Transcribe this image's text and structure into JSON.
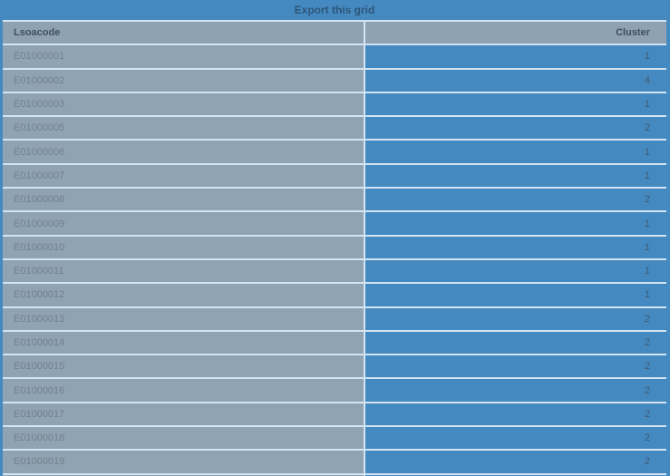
{
  "title_bar": {
    "label": "Export this grid"
  },
  "table": {
    "columns": {
      "lsoacode_label": "Lsoacode",
      "cluster_label": "Cluster"
    },
    "rows": [
      {
        "lsoacode": "E01000001",
        "cluster": "1"
      },
      {
        "lsoacode": "E01000002",
        "cluster": "4"
      },
      {
        "lsoacode": "E01000003",
        "cluster": "1"
      },
      {
        "lsoacode": "E01000005",
        "cluster": "2"
      },
      {
        "lsoacode": "E01000006",
        "cluster": "1"
      },
      {
        "lsoacode": "E01000007",
        "cluster": "1"
      },
      {
        "lsoacode": "E01000008",
        "cluster": "2"
      },
      {
        "lsoacode": "E01000009",
        "cluster": "1"
      },
      {
        "lsoacode": "E01000010",
        "cluster": "1"
      },
      {
        "lsoacode": "E01000011",
        "cluster": "1"
      },
      {
        "lsoacode": "E01000012",
        "cluster": "1"
      },
      {
        "lsoacode": "E01000013",
        "cluster": "2"
      },
      {
        "lsoacode": "E01000014",
        "cluster": "2"
      },
      {
        "lsoacode": "E01000015",
        "cluster": "2"
      },
      {
        "lsoacode": "E01000016",
        "cluster": "2"
      },
      {
        "lsoacode": "E01000017",
        "cluster": "2"
      },
      {
        "lsoacode": "E01000018",
        "cluster": "2"
      },
      {
        "lsoacode": "E01000019",
        "cluster": "2"
      }
    ],
    "partial_row_visible": true
  },
  "colors": {
    "frame_blue": "#4589c1",
    "cell_blue": "#4589c1",
    "cell_gray": "#90a3b3",
    "header_gray": "#8fa2b4",
    "separator_light": "#d3e4f2",
    "title_text": "#2d5578",
    "header_text": "#414f5c",
    "row_text": "#72808d",
    "cluster_text": "#3c5a73"
  }
}
